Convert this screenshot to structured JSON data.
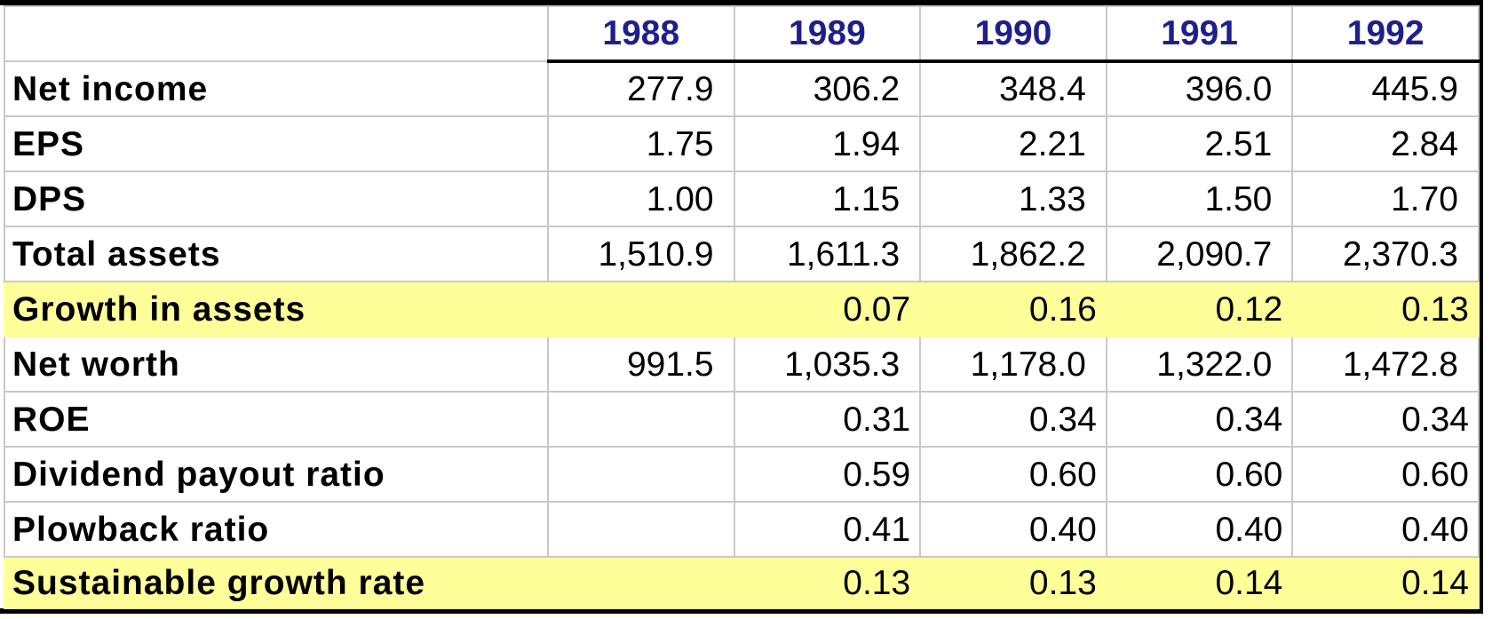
{
  "table": {
    "years": [
      "1988",
      "1989",
      "1990",
      "1991",
      "1992"
    ],
    "rows": [
      {
        "label": "Net income",
        "values": [
          "277.9",
          "306.2",
          "348.4",
          "396.0",
          "445.9"
        ],
        "highlight": false
      },
      {
        "label": "EPS",
        "values": [
          "1.75",
          "1.94",
          "2.21",
          "2.51",
          "2.84"
        ],
        "highlight": false
      },
      {
        "label": "DPS",
        "values": [
          "1.00",
          "1.15",
          "1.33",
          "1.50",
          "1.70"
        ],
        "highlight": false
      },
      {
        "label": "Total assets",
        "values": [
          "1,510.9",
          "1,611.3",
          "1,862.2",
          "2,090.7",
          "2,370.3"
        ],
        "highlight": false
      },
      {
        "label": "Growth in assets",
        "values": [
          "",
          "0.07",
          "0.16",
          "0.12",
          "0.13"
        ],
        "highlight": true
      },
      {
        "label": "Net worth",
        "values": [
          "991.5",
          "1,035.3",
          "1,178.0",
          "1,322.0",
          "1,472.8"
        ],
        "highlight": false
      },
      {
        "label": "ROE",
        "values": [
          "",
          "0.31",
          "0.34",
          "0.34",
          "0.34"
        ],
        "highlight": false
      },
      {
        "label": "Dividend payout ratio",
        "values": [
          "",
          "0.59",
          "0.60",
          "0.60",
          "0.60"
        ],
        "highlight": false
      },
      {
        "label": "Plowback ratio",
        "values": [
          "",
          "0.41",
          "0.40",
          "0.40",
          "0.40"
        ],
        "highlight": false
      },
      {
        "label": "Sustainable growth rate",
        "values": [
          "",
          "0.13",
          "0.13",
          "0.14",
          "0.14"
        ],
        "highlight": true
      }
    ]
  },
  "colors": {
    "header_text": "#1f1f8c",
    "highlight_fill": "#ffff99",
    "grid_line": "#c8c8c8"
  }
}
